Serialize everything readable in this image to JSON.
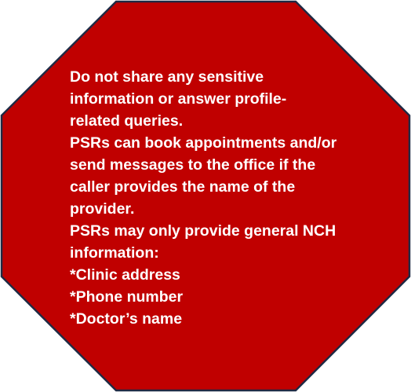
{
  "sign": {
    "fill_color": "#c00000",
    "border_color": "#1f2a44",
    "text_color": "#ffffff",
    "lines": [
      "Do not share any sensitive",
      "information or answer profile-",
      "related queries.",
      "PSRs can book appointments and/or",
      "send messages to the office if the",
      "caller provides the name of the",
      "provider.",
      "PSRs may only provide general NCH",
      "information:",
      "*Clinic address",
      "*Phone number",
      "*Doctor’s name"
    ]
  }
}
